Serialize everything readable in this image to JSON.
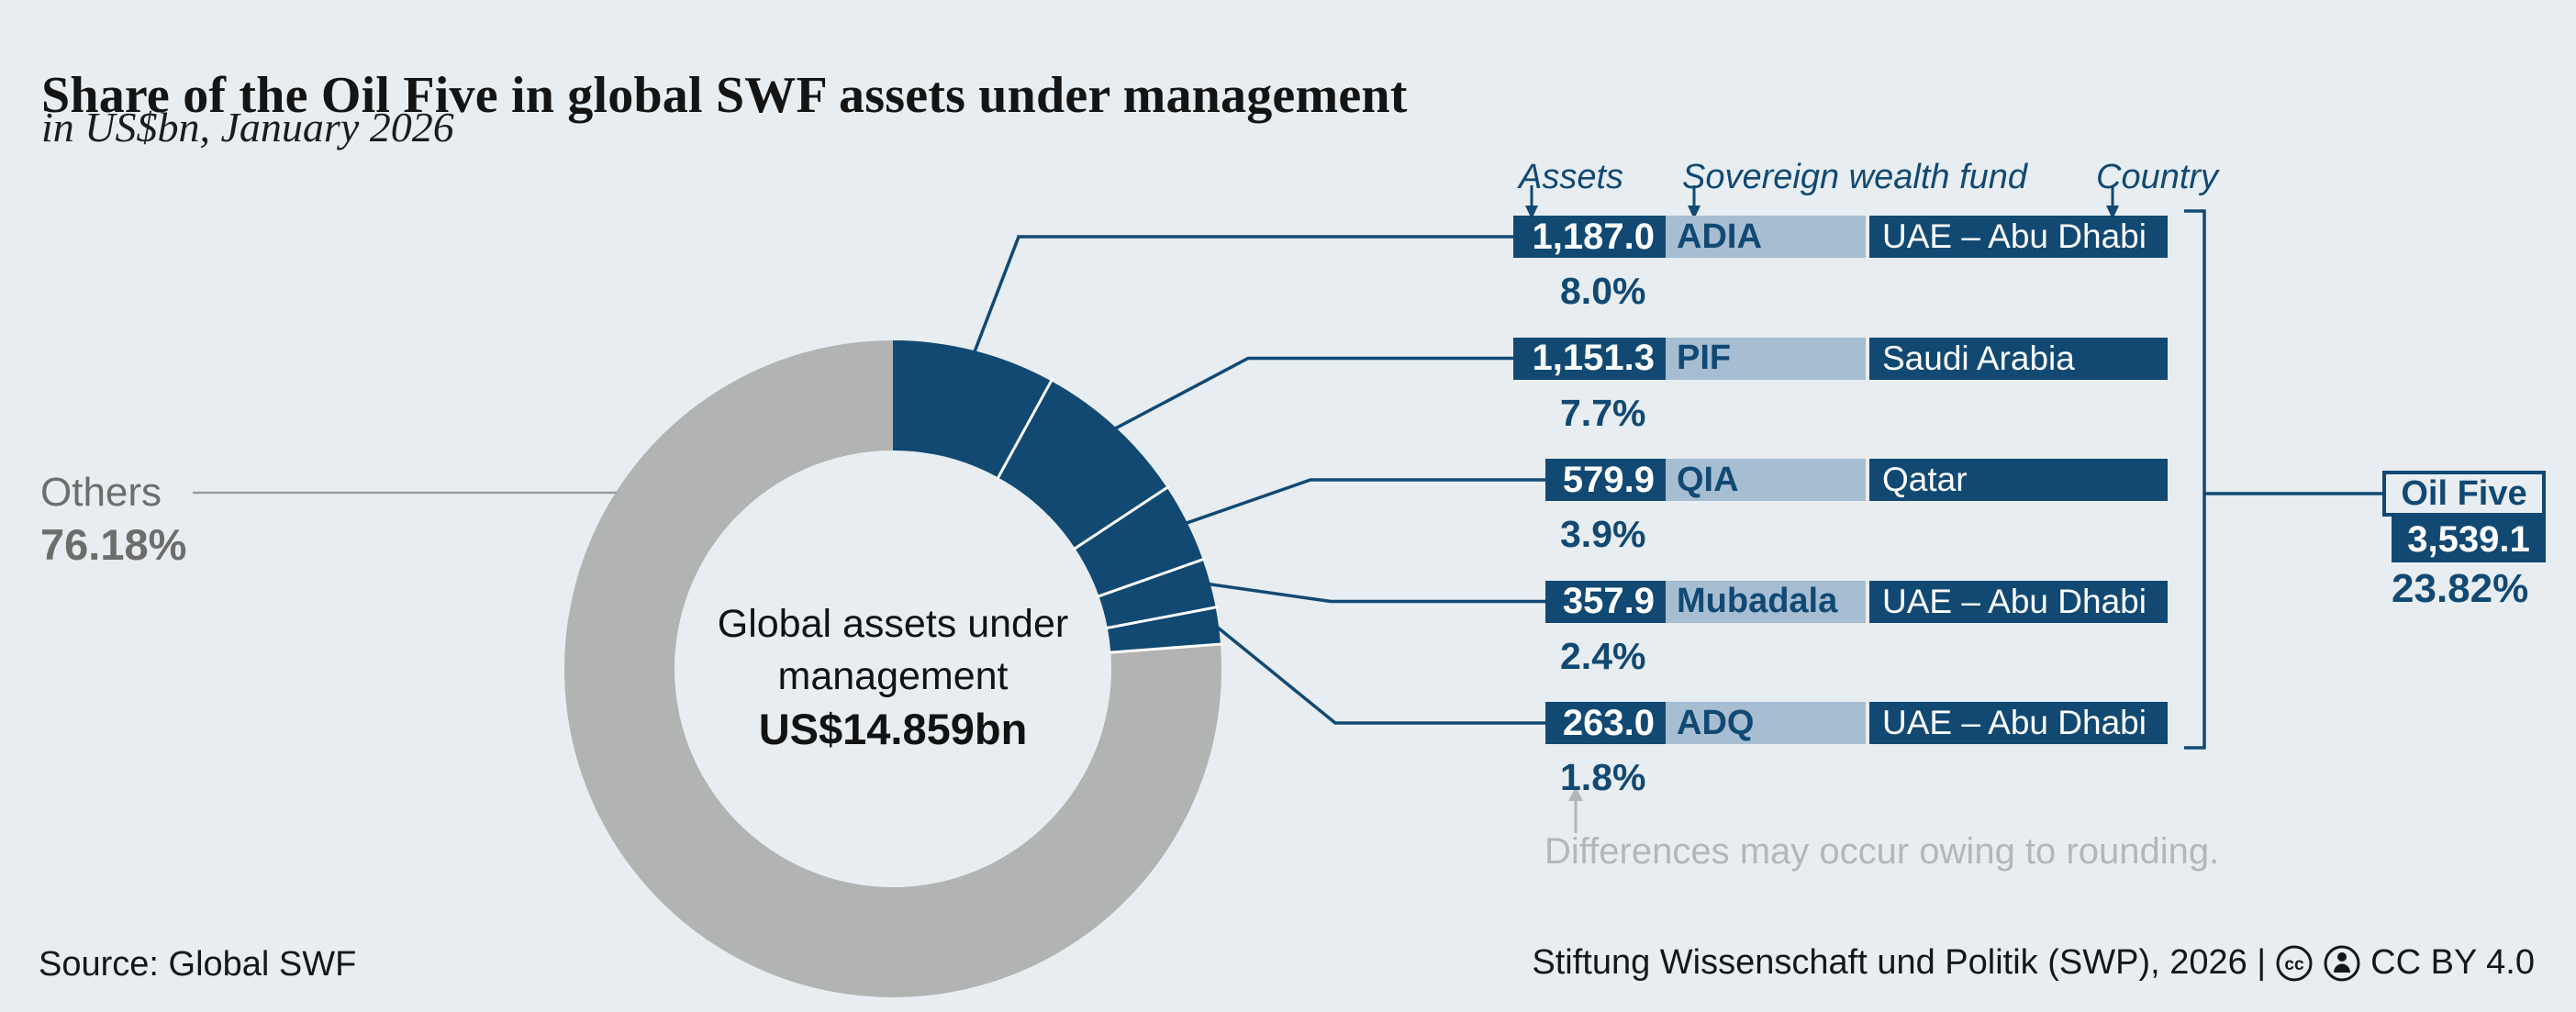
{
  "title": "Share of the Oil Five in global SWF assets under management",
  "subtitle": "in US$bn, January 2026",
  "columns": {
    "assets": "Assets",
    "fund": "Sovereign wealth fund",
    "country": "Country"
  },
  "funds": [
    {
      "assets": "1,187.0",
      "share": "8.0%",
      "fund": "ADIA",
      "country": "UAE – Abu Dhabi"
    },
    {
      "assets": "1,151.3",
      "share": "7.7%",
      "fund": "PIF",
      "country": "Saudi Arabia"
    },
    {
      "assets": "579.9",
      "share": "3.9%",
      "fund": "QIA",
      "country": "Qatar"
    },
    {
      "assets": "357.9",
      "share": "2.4%",
      "fund": "Mubadala",
      "country": "UAE – Abu Dhabi"
    },
    {
      "assets": "263.0",
      "share": "1.8%",
      "fund": "ADQ",
      "country": "UAE – Abu Dhabi"
    }
  ],
  "total": {
    "label": "Oil Five",
    "assets": "3,539.1",
    "share": "23.82%"
  },
  "others": {
    "label": "Others",
    "share": "76.18%"
  },
  "center": {
    "line1": "Global assets under",
    "line2": "management",
    "line3": "US$14.859bn"
  },
  "note": "Differences may occur owing to rounding.",
  "source": "Source: Global SWF",
  "credit_prefix": "Stiftung Wissenschaft und Politik (SWP), 2026 |",
  "license": "CC BY 4.0",
  "colors": {
    "navy": "#114973",
    "light_blue": "#a6bdd2",
    "donut_gray": "#b2b3b3",
    "background": "#e7edf0",
    "others_text_gray": "#6d6d6c",
    "note_gray": "#b2b8ba",
    "leader_gray": "#9b9b9b",
    "separator_white": "#ffffff"
  },
  "chart_data": {
    "type": "pie",
    "donut": true,
    "start_angle_deg": 0,
    "direction": "clockwise",
    "title": "Share of the Oil Five in global SWF assets under management",
    "subtitle": "in US$bn, January 2026",
    "unit": "US$bn",
    "center_label": "Global assets under management US$14.859bn",
    "slices": [
      {
        "label": "ADIA",
        "country": "UAE – Abu Dhabi",
        "value": 1187.0,
        "share_pct": 8.0
      },
      {
        "label": "PIF",
        "country": "Saudi Arabia",
        "value": 1151.3,
        "share_pct": 7.7
      },
      {
        "label": "QIA",
        "country": "Qatar",
        "value": 579.9,
        "share_pct": 3.9
      },
      {
        "label": "Mubadala",
        "country": "UAE – Abu Dhabi",
        "value": 357.9,
        "share_pct": 2.4
      },
      {
        "label": "ADQ",
        "country": "UAE – Abu Dhabi",
        "value": 263.0,
        "share_pct": 1.8
      },
      {
        "label": "Others",
        "share_pct": 76.18
      }
    ],
    "group_total": {
      "label": "Oil Five",
      "value": 3539.1,
      "share_pct": 23.82
    },
    "legend_position": "none",
    "grid": false
  }
}
